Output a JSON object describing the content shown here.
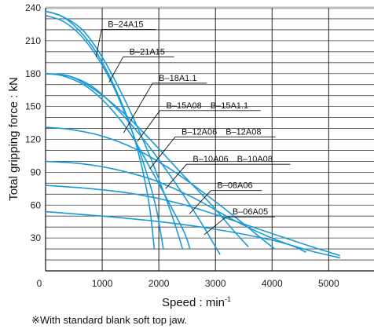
{
  "chart_data": {
    "type": "line",
    "xlabel": "Speed : min",
    "xlabel_superscript": "-1",
    "ylabel": "Total gripping force : kN",
    "xlim": [
      0,
      5800
    ],
    "ylim": [
      0,
      240
    ],
    "x_ticks": [
      0,
      1000,
      2000,
      3000,
      4000,
      5000
    ],
    "y_ticks": [
      30,
      60,
      90,
      120,
      150,
      180,
      210,
      240
    ],
    "grid": true,
    "series": [
      {
        "name": "B‒24A15",
        "points": [
          [
            0,
            237
          ],
          [
            300,
            232
          ],
          [
            600,
            219
          ],
          [
            900,
            199
          ],
          [
            1200,
            170
          ],
          [
            1500,
            132
          ],
          [
            1700,
            95
          ],
          [
            1840,
            57
          ],
          [
            1920,
            20
          ]
        ]
      },
      {
        "name": "B‒24A15",
        "points": [
          [
            0,
            233
          ],
          [
            300,
            228
          ],
          [
            600,
            216
          ],
          [
            900,
            196
          ],
          [
            1200,
            168
          ],
          [
            1500,
            131
          ],
          [
            1750,
            95
          ],
          [
            1950,
            58
          ],
          [
            2080,
            20
          ]
        ]
      },
      {
        "name": "B‒21A15",
        "points": [
          [
            0,
            237
          ],
          [
            300,
            232
          ],
          [
            650,
            220
          ],
          [
            1000,
            195
          ],
          [
            1400,
            156
          ],
          [
            1800,
            110
          ],
          [
            2100,
            70
          ],
          [
            2300,
            40
          ],
          [
            2420,
            20
          ]
        ]
      },
      {
        "name": "B‒18A1.1",
        "points": [
          [
            0,
            180
          ],
          [
            300,
            178
          ],
          [
            700,
            169
          ],
          [
            1100,
            151
          ],
          [
            1500,
            125
          ],
          [
            1900,
            89
          ],
          [
            2200,
            60
          ],
          [
            2450,
            35
          ],
          [
            2550,
            20
          ]
        ]
      },
      {
        "name": "B‒15A08, B‒15A1.1",
        "points": [
          [
            0,
            180
          ],
          [
            400,
            178
          ],
          [
            800,
            169
          ],
          [
            1200,
            151
          ],
          [
            1700,
            122
          ],
          [
            2200,
            87
          ],
          [
            2700,
            48
          ],
          [
            3000,
            22
          ],
          [
            3080,
            15
          ]
        ]
      },
      {
        "name": "B‒12A06, B‒12A08",
        "points": [
          [
            0,
            180
          ],
          [
            450,
            177
          ],
          [
            900,
            164
          ],
          [
            1400,
            143
          ],
          [
            1900,
            117
          ],
          [
            2400,
            89
          ],
          [
            2900,
            62
          ],
          [
            3300,
            38
          ],
          [
            3580,
            22
          ]
        ]
      },
      {
        "name": "B‒10A06, B‒10A08",
        "points": [
          [
            0,
            131
          ],
          [
            450,
            129
          ],
          [
            1000,
            123
          ],
          [
            1600,
            111
          ],
          [
            2200,
            93
          ],
          [
            2800,
            71
          ],
          [
            3400,
            47
          ],
          [
            3850,
            28
          ],
          [
            4050,
            20
          ]
        ]
      },
      {
        "name": "B‒08A06",
        "points": [
          [
            0,
            100
          ],
          [
            600,
            98
          ],
          [
            1200,
            93
          ],
          [
            1900,
            83
          ],
          [
            2600,
            67
          ],
          [
            3300,
            47
          ],
          [
            3900,
            32
          ],
          [
            4400,
            22
          ],
          [
            4600,
            17
          ]
        ]
      },
      {
        "name": "B‒06A05",
        "points": [
          [
            0,
            78
          ],
          [
            800,
            75
          ],
          [
            1600,
            70
          ],
          [
            2400,
            61
          ],
          [
            3200,
            48
          ],
          [
            4000,
            34
          ],
          [
            4700,
            22
          ],
          [
            5200,
            14
          ]
        ]
      },
      {
        "name": "",
        "points": [
          [
            0,
            54
          ],
          [
            1000,
            50
          ],
          [
            2000,
            45
          ],
          [
            3000,
            38
          ],
          [
            4000,
            28
          ],
          [
            4700,
            18
          ],
          [
            5200,
            12
          ]
        ]
      }
    ],
    "callouts": [
      {
        "label": "B‒24A15",
        "text_at": [
          1100,
          221
        ],
        "leader_to": [
          890,
          195
        ],
        "underline_end": 1950
      },
      {
        "label": "B‒21A15",
        "text_at": [
          1480,
          196
        ],
        "leader_to": [
          1120,
          172
        ],
        "underline_end": 2270
      },
      {
        "label": "B‒18A1.1",
        "text_at": [
          2000,
          172
        ],
        "leader_to": [
          1380,
          126
        ],
        "underline_end": 2850
      },
      {
        "label": "B‒15A08　B‒15A1.1",
        "text_at": [
          2130,
          147
        ],
        "leader_to": [
          1620,
          118
        ],
        "underline_end": 3800
      },
      {
        "label": "B‒12A06　B‒12A08",
        "text_at": [
          2400,
          123
        ],
        "leader_to": [
          1840,
          93
        ],
        "underline_end": 4060
      },
      {
        "label": "B‒10A06　B‒10A08",
        "text_at": [
          2600,
          98
        ],
        "leader_to": [
          2120,
          75
        ],
        "underline_end": 4320
      },
      {
        "label": "B‒08A06",
        "text_at": [
          3030,
          74
        ],
        "leader_to": [
          2540,
          52
        ],
        "underline_end": 3820
      },
      {
        "label": "B‒06A05",
        "text_at": [
          3300,
          50
        ],
        "leader_to": [
          2800,
          33
        ],
        "underline_end": 4050
      }
    ]
  },
  "footnote": "※With standard blank soft top jaw."
}
